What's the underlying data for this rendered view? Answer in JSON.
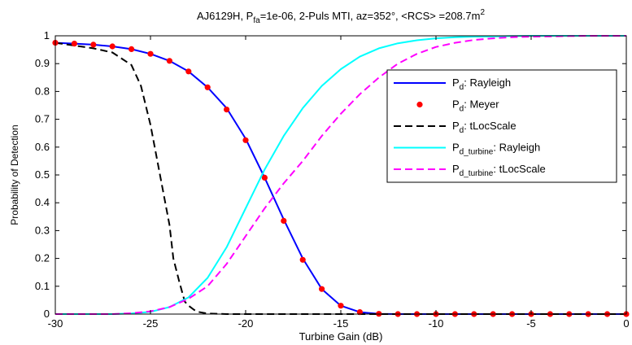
{
  "chart_data": {
    "type": "line",
    "title": {
      "prefix": "AJ6129H, P",
      "pfa_sub": "fa",
      "mid": "=1e-06, 2-Puls MTI, az=352°, <RCS> =208.7m",
      "sup": "2"
    },
    "xlabel": "Turbine Gain (dB)",
    "ylabel": "Probability of Detection",
    "xlim": [
      -30,
      0
    ],
    "ylim": [
      0,
      1
    ],
    "xticks": [
      -30,
      -25,
      -20,
      -15,
      -10,
      -5,
      0
    ],
    "yticks": [
      0,
      0.1,
      0.2,
      0.3,
      0.4,
      0.5,
      0.6,
      0.7,
      0.8,
      0.9,
      1
    ],
    "xtick_labels": [
      "-30",
      "-25",
      "-20",
      "-15",
      "-10",
      "-5",
      "0"
    ],
    "ytick_labels": [
      "0",
      "0.1",
      "0.2",
      "0.3",
      "0.4",
      "0.5",
      "0.6",
      "0.7",
      "0.8",
      "0.9",
      "1"
    ],
    "grid": false,
    "legend_position": "right",
    "series": [
      {
        "name": "Pd: Rayleigh",
        "legend": {
          "main": "P",
          "sub": "d",
          "tail": ": Rayleigh"
        },
        "color": "#0000ff",
        "style": "solid",
        "x": [
          -30,
          -29,
          -28,
          -27,
          -26,
          -25,
          -24,
          -23,
          -22,
          -21,
          -20,
          -19,
          -18,
          -17,
          -16,
          -15,
          -14,
          -13,
          -12,
          -11,
          -10,
          -5,
          0
        ],
        "y": [
          0.975,
          0.972,
          0.968,
          0.962,
          0.952,
          0.935,
          0.91,
          0.872,
          0.815,
          0.74,
          0.63,
          0.49,
          0.34,
          0.2,
          0.09,
          0.03,
          0.007,
          0.001,
          0,
          0,
          0,
          0,
          0
        ]
      },
      {
        "name": "Pd: Meyer",
        "legend": {
          "main": "P",
          "sub": "d",
          "tail": ": Meyer"
        },
        "color": "#ff0000",
        "style": "markers",
        "x": [
          -30,
          -29,
          -28,
          -27,
          -26,
          -25,
          -24,
          -23,
          -22,
          -21,
          -20,
          -19,
          -18,
          -17,
          -16,
          -15,
          -14,
          -13,
          -12,
          -11,
          -10,
          -9,
          -8,
          -7,
          -6,
          -5,
          -4,
          -3,
          -2,
          -1,
          0
        ],
        "y": [
          0.975,
          0.972,
          0.968,
          0.962,
          0.952,
          0.935,
          0.91,
          0.872,
          0.815,
          0.735,
          0.625,
          0.49,
          0.335,
          0.195,
          0.09,
          0.03,
          0.007,
          0.001,
          0,
          0,
          0,
          0,
          0,
          0,
          0,
          0,
          0,
          0,
          0,
          0,
          0
        ]
      },
      {
        "name": "Pd: tLocScale",
        "legend": {
          "main": "P",
          "sub": "d",
          "tail": ": tLocScale"
        },
        "color": "#000000",
        "style": "dashed",
        "x": [
          -30,
          -29,
          -28,
          -27,
          -26,
          -25.5,
          -25,
          -24.5,
          -24,
          -23.8,
          -23.5,
          -23.3,
          -23.2,
          -23,
          -22.7,
          -22.5,
          -22,
          -21,
          -15,
          -10,
          0
        ],
        "y": [
          0.975,
          0.965,
          0.955,
          0.94,
          0.895,
          0.82,
          0.68,
          0.5,
          0.32,
          0.2,
          0.12,
          0.07,
          0.045,
          0.03,
          0.015,
          0.008,
          0.002,
          0,
          0,
          0,
          0
        ]
      },
      {
        "name": "Pd_turbine: Rayleigh",
        "legend": {
          "main": "P",
          "sub": "d_turbine",
          "tail": ": Rayleigh"
        },
        "color": "#00ffff",
        "style": "solid",
        "x": [
          -30,
          -27,
          -26,
          -25,
          -24,
          -23,
          -22,
          -21,
          -20,
          -19,
          -18,
          -17,
          -16,
          -15,
          -14,
          -13,
          -12,
          -11,
          -10,
          -9,
          -8,
          -7,
          -6,
          -5,
          -4,
          -3,
          0
        ],
        "y": [
          0,
          0,
          0.002,
          0.008,
          0.025,
          0.06,
          0.13,
          0.24,
          0.38,
          0.52,
          0.64,
          0.74,
          0.82,
          0.88,
          0.925,
          0.955,
          0.973,
          0.984,
          0.991,
          0.995,
          0.997,
          0.998,
          0.999,
          1,
          1,
          1,
          1
        ]
      },
      {
        "name": "Pd_turbine: tLocScale",
        "legend": {
          "main": "P",
          "sub": "d_turbine",
          "tail": ": tLocScale"
        },
        "color": "#ff00ff",
        "style": "dashed",
        "x": [
          -30,
          -27,
          -26,
          -25,
          -24,
          -23,
          -22,
          -21,
          -20,
          -19,
          -18,
          -17,
          -16,
          -15,
          -14,
          -13,
          -12,
          -11,
          -10,
          -9,
          -8,
          -7,
          -6,
          -5,
          -4,
          -3,
          -2,
          -1,
          0
        ],
        "y": [
          0,
          0,
          0.003,
          0.01,
          0.025,
          0.055,
          0.1,
          0.18,
          0.28,
          0.38,
          0.47,
          0.55,
          0.64,
          0.72,
          0.79,
          0.85,
          0.9,
          0.935,
          0.96,
          0.975,
          0.985,
          0.991,
          0.995,
          0.997,
          0.998,
          0.999,
          1,
          1,
          1
        ]
      }
    ]
  }
}
